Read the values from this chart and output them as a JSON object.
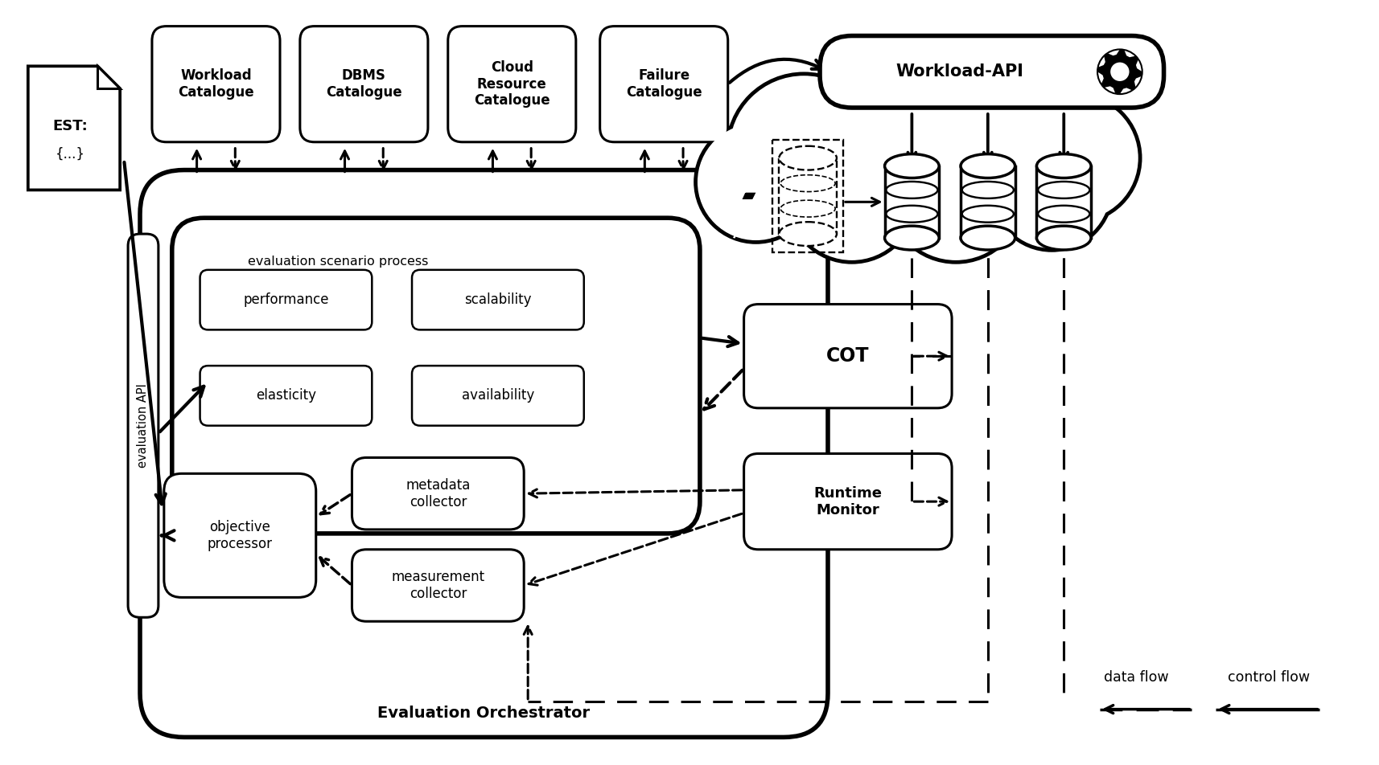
{
  "bg_color": "#ffffff",
  "fig_width": 17.15,
  "fig_height": 9.52,
  "lw_thick": 3.0,
  "lw_med": 2.2,
  "lw_thin": 1.8,
  "lw_border": 4.0,
  "cat_names": [
    "Workload\nCatalogue",
    "DBMS\nCatalogue",
    "Cloud\nResource\nCatalogue",
    "Failure\nCatalogue"
  ],
  "inner_names": [
    "performance",
    "scalability",
    "elasticity",
    "availability"
  ],
  "legend_data_flow": "data flow",
  "legend_control_flow": "control flow",
  "eval_api_text": "evaluation API",
  "eval_orch_text": "Evaluation Orchestrator",
  "eval_scenario_text": "evaluation scenario process",
  "workload_api_text": "Workload-API",
  "cot_text": "COT",
  "runtime_monitor_text": "Runtime\nMonitor",
  "metadata_collector_text": "metadata\ncollector",
  "measurement_collector_text": "measurement\ncollector",
  "objective_processor_text": "objective\nprocessor",
  "est_line1": "EST:",
  "est_line2": "{...}"
}
